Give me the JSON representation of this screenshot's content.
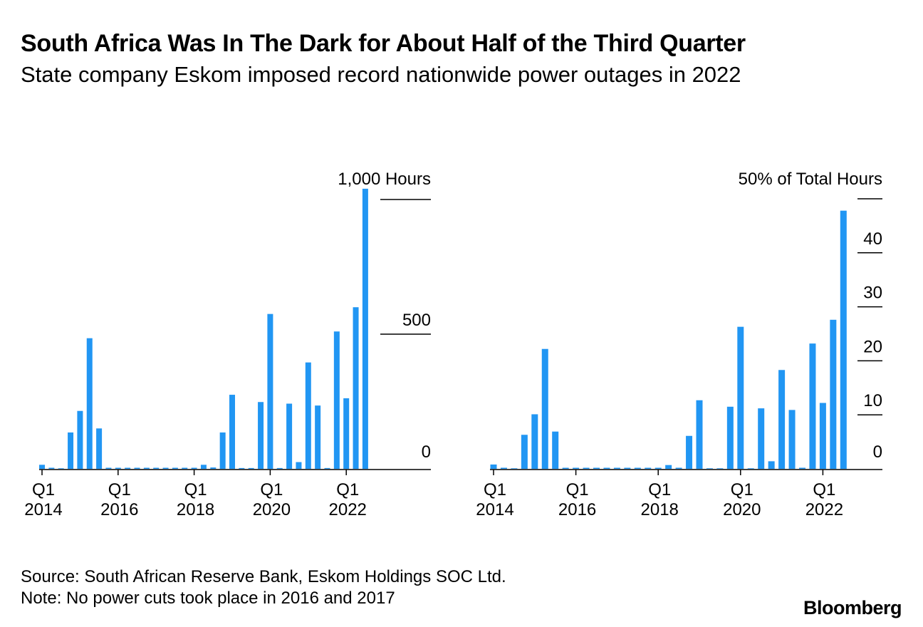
{
  "header": {
    "title": "South Africa Was In The Dark for About Half of the Third Quarter",
    "subtitle": "State company Eskom imposed record nationwide power outages in 2022"
  },
  "footer": {
    "source": "Source: South African Reserve Bank, Eskom Holdings SOC Ltd.",
    "note": "Note: No power cuts took place in 2016 and 2017",
    "logo": "Bloomberg"
  },
  "colors": {
    "bar": "#2196f3",
    "axis": "#000000"
  },
  "chart_data": [
    {
      "type": "bar",
      "unit_label": "1,000 Hours",
      "ylim": [
        0,
        1000
      ],
      "ytick_values": [
        0,
        500,
        1000
      ],
      "ytick_labels": [
        "0",
        "500",
        "1,000 Hours"
      ],
      "xtick_labels": [
        [
          "Q1",
          "2014"
        ],
        [
          "Q1",
          "2016"
        ],
        [
          "Q1",
          "2018"
        ],
        [
          "Q1",
          "2020"
        ],
        [
          "Q1",
          "2022"
        ]
      ],
      "categories": [
        "Q1 2014",
        "Q2 2014",
        "Q3 2014",
        "Q4 2014",
        "Q1 2015",
        "Q2 2015",
        "Q3 2015",
        "Q4 2015",
        "Q1 2016",
        "Q2 2016",
        "Q3 2016",
        "Q4 2016",
        "Q1 2017",
        "Q2 2017",
        "Q3 2017",
        "Q4 2017",
        "Q1 2018",
        "Q2 2018",
        "Q3 2018",
        "Q4 2018",
        "Q1 2019",
        "Q2 2019",
        "Q3 2019",
        "Q4 2019",
        "Q1 2020",
        "Q2 2020",
        "Q3 2020",
        "Q4 2020",
        "Q1 2021",
        "Q2 2021",
        "Q3 2021",
        "Q4 2021",
        "Q1 2022",
        "Q2 2022",
        "Q3 2022"
      ],
      "values": [
        15,
        4,
        2,
        135,
        215,
        485,
        150,
        0,
        0,
        0,
        0,
        0,
        0,
        0,
        0,
        0,
        0,
        15,
        5,
        135,
        275,
        3,
        3,
        248,
        575,
        3,
        242,
        25,
        395,
        235,
        3,
        510,
        262,
        600,
        1040
      ]
    },
    {
      "type": "bar",
      "unit_label": "50% of Total Hours",
      "ylim": [
        0,
        50
      ],
      "ytick_values": [
        0,
        10,
        20,
        30,
        40,
        50
      ],
      "ytick_labels": [
        "0",
        "10",
        "20",
        "30",
        "40",
        "50% of Total Hours"
      ],
      "xtick_labels": [
        [
          "Q1",
          "2014"
        ],
        [
          "Q1",
          "2016"
        ],
        [
          "Q1",
          "2018"
        ],
        [
          "Q1",
          "2020"
        ],
        [
          "Q1",
          "2022"
        ]
      ],
      "categories": [
        "Q1 2014",
        "Q2 2014",
        "Q3 2014",
        "Q4 2014",
        "Q1 2015",
        "Q2 2015",
        "Q3 2015",
        "Q4 2015",
        "Q1 2016",
        "Q2 2016",
        "Q3 2016",
        "Q4 2016",
        "Q1 2017",
        "Q2 2017",
        "Q3 2017",
        "Q4 2017",
        "Q1 2018",
        "Q2 2018",
        "Q3 2018",
        "Q4 2018",
        "Q1 2019",
        "Q2 2019",
        "Q3 2019",
        "Q4 2019",
        "Q1 2020",
        "Q2 2020",
        "Q3 2020",
        "Q4 2020",
        "Q1 2021",
        "Q2 2021",
        "Q3 2021",
        "Q4 2021",
        "Q1 2022",
        "Q2 2022",
        "Q3 2022"
      ],
      "values": [
        0.8,
        0.2,
        0.1,
        6.3,
        10.1,
        22.2,
        6.9,
        0,
        0,
        0,
        0,
        0,
        0,
        0,
        0,
        0,
        0,
        0.7,
        0.2,
        6.1,
        12.7,
        0.1,
        0.1,
        11.5,
        26.3,
        0.1,
        11.2,
        1.4,
        18.3,
        10.9,
        0.2,
        23.2,
        12.2,
        27.6,
        47.8
      ]
    }
  ]
}
